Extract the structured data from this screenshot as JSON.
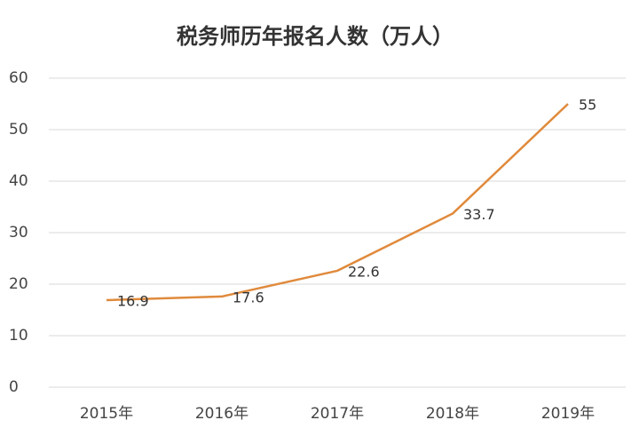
{
  "chart_data": {
    "type": "line",
    "title": "税务师历年报名人数（万人）",
    "categories": [
      "2015年",
      "2016年",
      "2017年",
      "2018年",
      "2019年"
    ],
    "values": [
      16.9,
      17.6,
      22.6,
      33.7,
      55
    ],
    "color": "#e08a3c",
    "ylim": [
      0,
      60
    ],
    "yticks": [
      0,
      10,
      20,
      30,
      40,
      50,
      60
    ],
    "grid": true
  }
}
